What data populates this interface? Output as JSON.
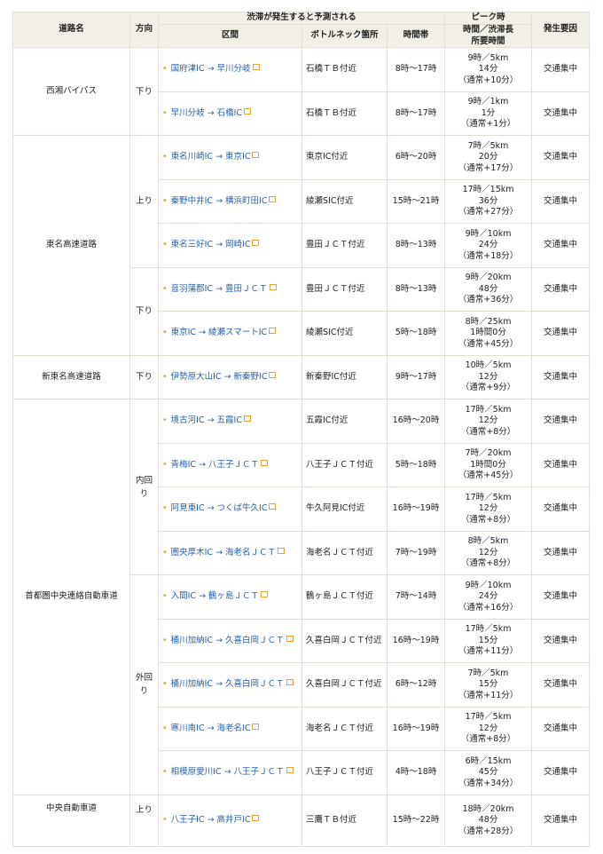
{
  "header": {
    "road": "道路名",
    "direction": "方向",
    "group_title": "渋滞が発生すると予測される",
    "section": "区間",
    "bottleneck": "ボトルネック箇所",
    "time_range": "時間帯",
    "peak_title": "ピーク時",
    "peak_sub": "時間／渋滞長\n所要時間",
    "cause": "発生要因"
  },
  "roads": [
    {
      "name": "西湘バイパス",
      "directions": [
        {
          "dir": "下り",
          "rows": [
            {
              "section": "国府津IC → 早川分岐",
              "bottleneck": "石橋ＴＢ付近",
              "time": "8時〜17時",
              "peak": "9時／5km",
              "duration": "14分",
              "diff": "（通常+10分）",
              "cause": "交通集中"
            },
            {
              "section": "早川分岐 → 石橋IC",
              "bottleneck": "石橋ＴＢ付近",
              "time": "8時〜17時",
              "peak": "9時／1km",
              "duration": "1分",
              "diff": "（通常+1分）",
              "cause": "交通集中"
            }
          ]
        }
      ]
    },
    {
      "name": "東名高速道路",
      "directions": [
        {
          "dir": "上り",
          "rows": [
            {
              "section": "東名川崎IC → 東京IC",
              "bottleneck": "東京IC付近",
              "time": "6時〜20時",
              "peak": "7時／5km",
              "duration": "20分",
              "diff": "（通常+17分）",
              "cause": "交通集中"
            },
            {
              "section": "秦野中井IC → 横浜町田IC",
              "bottleneck": "綾瀬SIC付近",
              "time": "15時〜21時",
              "peak": "17時／15km",
              "duration": "36分",
              "diff": "（通常+27分）",
              "cause": "交通集中"
            },
            {
              "section": "東名三好IC → 岡崎IC",
              "bottleneck": "豊田ＪＣＴ付近",
              "time": "8時〜13時",
              "peak": "9時／10km",
              "duration": "24分",
              "diff": "（通常+18分）",
              "cause": "交通集中"
            }
          ]
        },
        {
          "dir": "下り",
          "rows": [
            {
              "section": "音羽蒲郡IC → 豊田ＪＣＴ",
              "bottleneck": "豊田ＪＣＴ付近",
              "time": "8時〜13時",
              "peak": "9時／20km",
              "duration": "48分",
              "diff": "（通常+36分）",
              "cause": "交通集中"
            },
            {
              "section": "東京IC → 綾瀬スマートIC",
              "bottleneck": "綾瀬SIC付近",
              "time": "5時〜18時",
              "peak": "8時／25km",
              "duration": "1時間0分",
              "diff": "（通常+45分）",
              "cause": "交通集中"
            }
          ]
        }
      ]
    },
    {
      "name": "新東名高速道路",
      "directions": [
        {
          "dir": "下り",
          "rows": [
            {
              "section": "伊勢原大山IC → 新秦野IC",
              "bottleneck": "新秦野IC付近",
              "time": "9時〜17時",
              "peak": "10時／5km",
              "duration": "12分",
              "diff": "（通常+9分）",
              "cause": "交通集中"
            }
          ]
        }
      ]
    },
    {
      "name": "首都圏中央連絡自動車道",
      "directions": [
        {
          "dir": "内回り",
          "rows": [
            {
              "section": "境古河IC → 五霞IC",
              "bottleneck": "五霞IC付近",
              "time": "16時〜20時",
              "peak": "17時／5km",
              "duration": "12分",
              "diff": "（通常+8分）",
              "cause": "交通集中"
            },
            {
              "section": "青梅IC → 八王子ＪＣＴ",
              "bottleneck": "八王子ＪＣＴ付近",
              "time": "5時〜18時",
              "peak": "7時／20km",
              "duration": "1時間0分",
              "diff": "（通常+45分）",
              "cause": "交通集中"
            },
            {
              "section": "阿見東IC → つくば牛久IC",
              "bottleneck": "牛久阿見IC付近",
              "time": "16時〜19時",
              "peak": "17時／5km",
              "duration": "12分",
              "diff": "（通常+8分）",
              "cause": "交通集中"
            },
            {
              "section": "圏央厚木IC → 海老名ＪＣＴ",
              "bottleneck": "海老名ＪＣＴ付近",
              "time": "7時〜19時",
              "peak": "8時／5km",
              "duration": "12分",
              "diff": "（通常+8分）",
              "cause": "交通集中"
            }
          ]
        },
        {
          "dir": "外回り",
          "rows": [
            {
              "section": "入間IC → 鶴ヶ島ＪＣＴ",
              "bottleneck": "鶴ヶ島ＪＣＴ付近",
              "time": "7時〜14時",
              "peak": "9時／10km",
              "duration": "24分",
              "diff": "（通常+16分）",
              "cause": "交通集中"
            },
            {
              "section": "桶川加納IC → 久喜白岡ＪＣＴ",
              "bottleneck": "久喜白岡ＪＣＴ付近",
              "time": "16時〜19時",
              "peak": "17時／5km",
              "duration": "15分",
              "diff": "（通常+11分）",
              "cause": "交通集中"
            },
            {
              "section": "桶川加納IC → 久喜白岡ＪＣＴ",
              "bottleneck": "久喜白岡ＪＣＴ付近",
              "time": "6時〜12時",
              "peak": "7時／5km",
              "duration": "15分",
              "diff": "（通常+11分）",
              "cause": "交通集中"
            },
            {
              "section": "寒川南IC → 海老名IC",
              "bottleneck": "海老名ＪＣＴ付近",
              "time": "16時〜19時",
              "peak": "17時／5km",
              "duration": "12分",
              "diff": "（通常+8分）",
              "cause": "交通集中"
            },
            {
              "section": "相模原愛川IC → 八王子ＪＣＴ",
              "bottleneck": "八王子ＪＣＴ付近",
              "time": "4時〜18時",
              "peak": "6時／15km",
              "duration": "45分",
              "diff": "（通常+34分）",
              "cause": "交通集中"
            }
          ]
        }
      ]
    },
    {
      "name": "中央自動車道",
      "directions": [
        {
          "dir": "上り",
          "rows": [
            {
              "section": "八王子IC → 高井戸IC",
              "bottleneck": "三鷹ＴＢ付近",
              "time": "15時〜22時",
              "peak": "18時／20km",
              "duration": "48分",
              "diff": "（通常+28分）",
              "cause": "交通集中"
            }
          ]
        }
      ]
    }
  ],
  "colors": {
    "link": "#2a5fa8",
    "header_bg": "#f2efe6",
    "bullet": "#e8a33b"
  }
}
